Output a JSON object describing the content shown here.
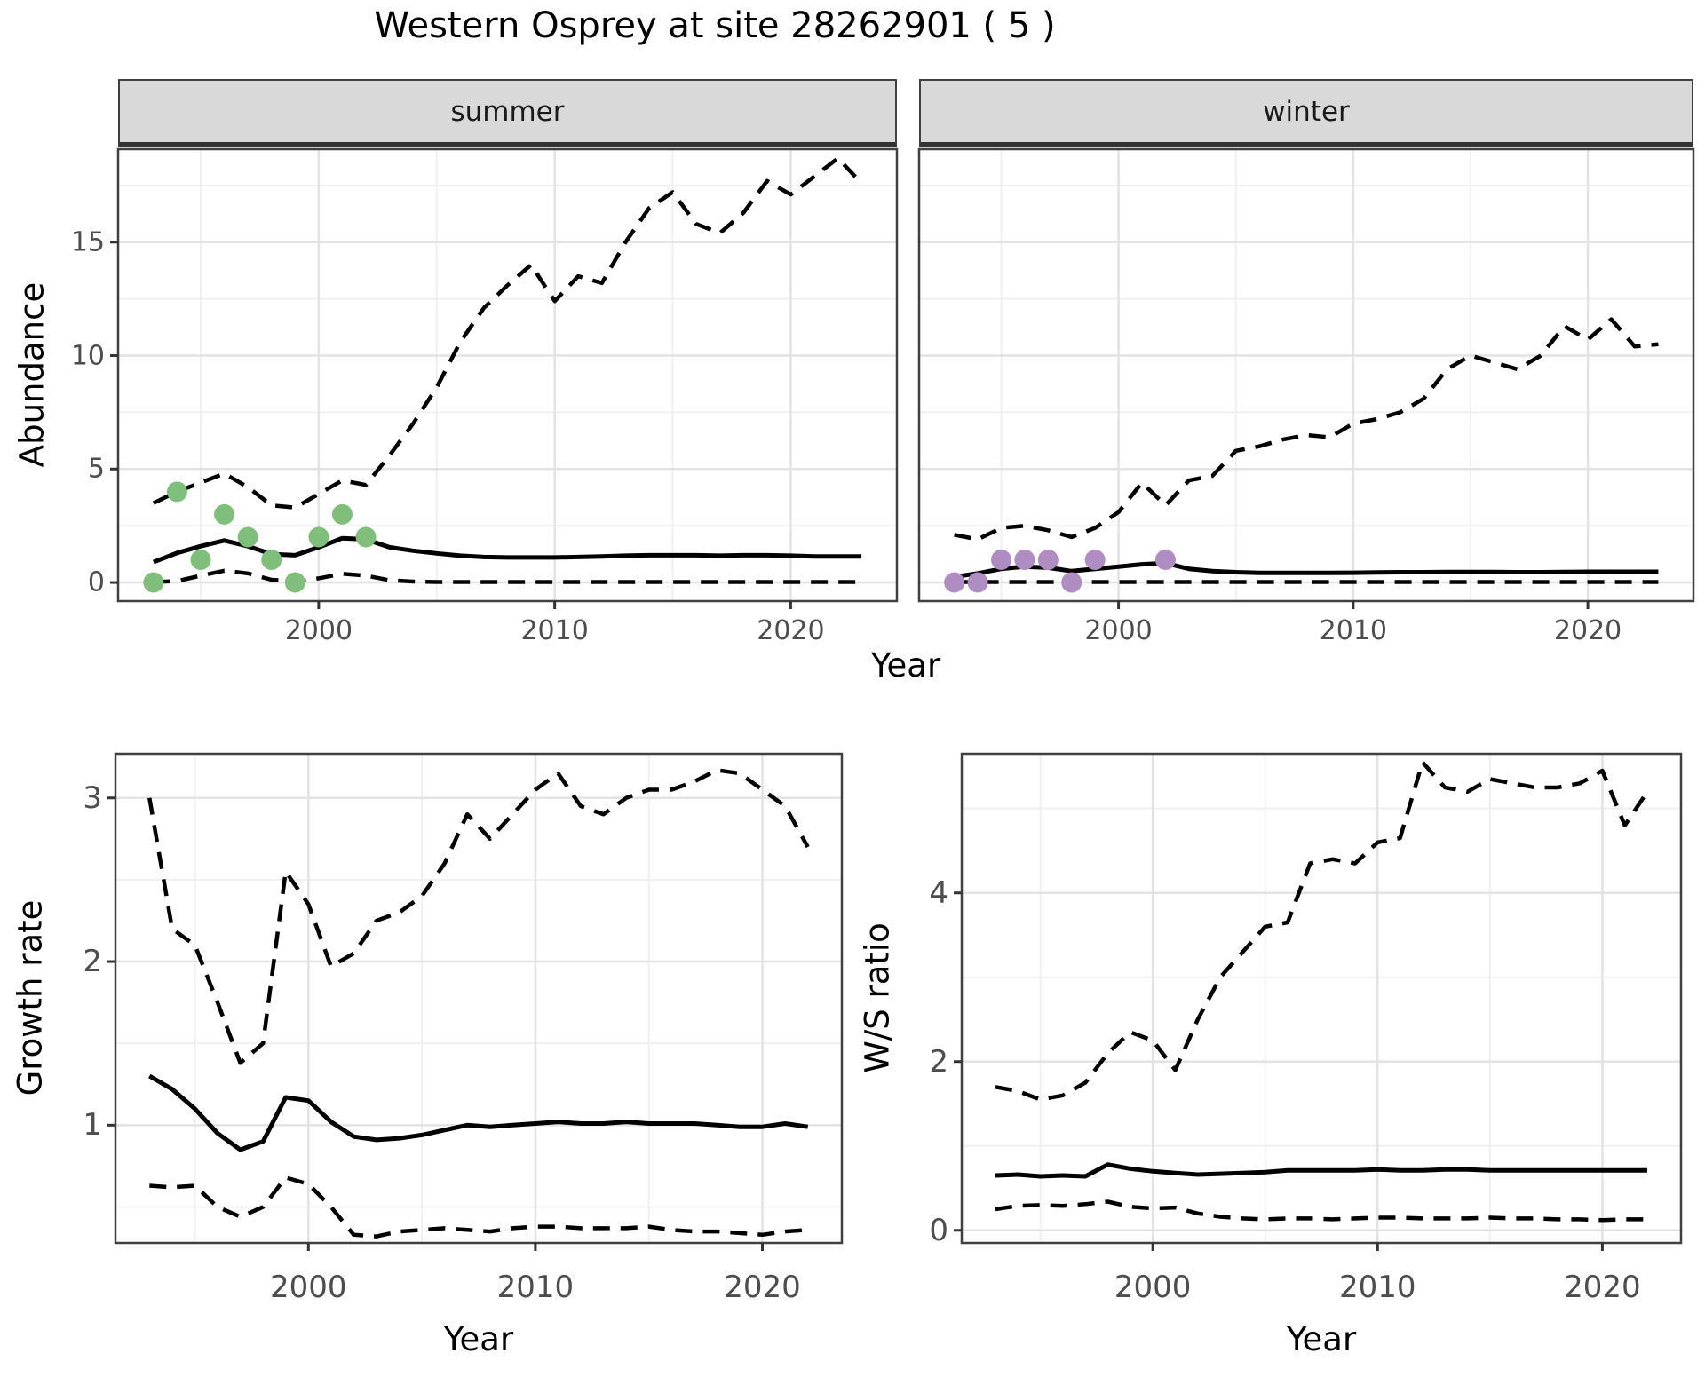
{
  "title": "Western Osprey at site 28262901 ( 5 )",
  "facets": [
    "summer",
    "winter"
  ],
  "axis_titles": {
    "x": "Year",
    "y_abundance": "Abundance",
    "y_growth": "Growth rate",
    "y_ws": "W/S ratio"
  },
  "colors": {
    "summer_points": "#7FBF7B",
    "winter_points": "#AF8DC3",
    "line": "#000000",
    "grid_major": "#E3E3E3",
    "grid_minor": "#F0F0F0",
    "panel_border": "#404040",
    "strip_bg": "#D9D9D9",
    "tick_text": "#4D4D4D",
    "tick_mark": "#333333"
  },
  "chart_data": [
    {
      "id": "abundance_summer",
      "type": "line",
      "facet_label": "summer",
      "xlabel": "Year",
      "ylabel": "Abundance",
      "xlim": [
        1991.5,
        2024.5
      ],
      "ylim": [
        -0.82,
        19.1
      ],
      "xticks": [
        2000,
        2010,
        2020
      ],
      "yticks": [
        0,
        5,
        10,
        15
      ],
      "minor_xticks": [
        1995,
        2005,
        2015
      ],
      "minor_yticks": [
        2.5,
        7.5,
        12.5,
        17.5
      ],
      "show_yticklabels": true,
      "x": [
        1993,
        1994,
        1995,
        1996,
        1997,
        1998,
        1999,
        2000,
        2001,
        2002,
        2003,
        2004,
        2005,
        2006,
        2007,
        2008,
        2009,
        2010,
        2011,
        2012,
        2013,
        2014,
        2015,
        2016,
        2017,
        2018,
        2019,
        2020,
        2021,
        2022,
        2023
      ],
      "series": [
        {
          "name": "upper_ci",
          "style": "dashed",
          "values": [
            3.5,
            4.0,
            4.4,
            4.8,
            4.2,
            3.4,
            3.3,
            3.9,
            4.5,
            4.3,
            5.6,
            7.0,
            8.6,
            10.6,
            12.1,
            13.1,
            14.0,
            12.4,
            13.5,
            13.2,
            15.0,
            16.5,
            17.2,
            15.8,
            15.4,
            16.3,
            17.7,
            17.1,
            17.9,
            18.7,
            17.6
          ]
        },
        {
          "name": "median",
          "style": "solid",
          "values": [
            0.9,
            1.3,
            1.6,
            1.85,
            1.6,
            1.25,
            1.2,
            1.55,
            1.95,
            1.9,
            1.55,
            1.4,
            1.28,
            1.18,
            1.12,
            1.1,
            1.1,
            1.1,
            1.12,
            1.15,
            1.18,
            1.2,
            1.2,
            1.2,
            1.18,
            1.2,
            1.2,
            1.18,
            1.15,
            1.15,
            1.15
          ]
        },
        {
          "name": "lower_ci",
          "style": "dashed",
          "values": [
            0.02,
            0.06,
            0.3,
            0.52,
            0.4,
            0.12,
            0.06,
            0.18,
            0.38,
            0.3,
            0.1,
            0.04,
            0.02,
            0.02,
            0.02,
            0.02,
            0.02,
            0.02,
            0.02,
            0.02,
            0.02,
            0.02,
            0.02,
            0.02,
            0.02,
            0.02,
            0.02,
            0.02,
            0.02,
            0.02,
            0.02
          ]
        }
      ],
      "points": {
        "color_key": "summer_points",
        "data": [
          [
            1993,
            0
          ],
          [
            1994,
            4
          ],
          [
            1995,
            1
          ],
          [
            1996,
            3
          ],
          [
            1997,
            2
          ],
          [
            1998,
            1
          ],
          [
            1999,
            0
          ],
          [
            2000,
            2
          ],
          [
            2001,
            3
          ],
          [
            2002,
            2
          ]
        ]
      }
    },
    {
      "id": "abundance_winter",
      "type": "line",
      "facet_label": "winter",
      "xlabel": "Year",
      "ylabel": "Abundance",
      "xlim": [
        1991.5,
        2024.5
      ],
      "ylim": [
        -0.82,
        19.1
      ],
      "xticks": [
        2000,
        2010,
        2020
      ],
      "yticks": [
        0,
        5,
        10,
        15
      ],
      "minor_xticks": [
        1995,
        2005,
        2015
      ],
      "minor_yticks": [
        2.5,
        7.5,
        12.5,
        17.5
      ],
      "show_yticklabels": false,
      "x": [
        1993,
        1994,
        1995,
        1996,
        1997,
        1998,
        1999,
        2000,
        2001,
        2002,
        2003,
        2004,
        2005,
        2006,
        2007,
        2008,
        2009,
        2010,
        2011,
        2012,
        2013,
        2014,
        2015,
        2016,
        2017,
        2018,
        2019,
        2020,
        2021,
        2022,
        2023
      ],
      "series": [
        {
          "name": "upper_ci",
          "style": "dashed",
          "values": [
            2.1,
            1.9,
            2.4,
            2.5,
            2.3,
            2.0,
            2.4,
            3.1,
            4.4,
            3.4,
            4.5,
            4.7,
            5.8,
            6.0,
            6.3,
            6.5,
            6.4,
            7.0,
            7.2,
            7.5,
            8.1,
            9.4,
            10.0,
            9.7,
            9.4,
            10.0,
            11.3,
            10.7,
            11.6,
            10.4,
            10.5
          ]
        },
        {
          "name": "median",
          "style": "solid",
          "values": [
            0.25,
            0.4,
            0.6,
            0.7,
            0.65,
            0.5,
            0.6,
            0.7,
            0.8,
            0.85,
            0.6,
            0.5,
            0.45,
            0.42,
            0.42,
            0.42,
            0.42,
            0.43,
            0.44,
            0.45,
            0.45,
            0.46,
            0.46,
            0.46,
            0.45,
            0.45,
            0.46,
            0.47,
            0.47,
            0.47,
            0.47
          ]
        },
        {
          "name": "lower_ci",
          "style": "dashed",
          "values": [
            0.02,
            0.02,
            0.02,
            0.02,
            0.02,
            0.02,
            0.02,
            0.02,
            0.02,
            0.02,
            0.02,
            0.02,
            0.02,
            0.02,
            0.02,
            0.02,
            0.02,
            0.02,
            0.02,
            0.02,
            0.02,
            0.02,
            0.02,
            0.02,
            0.02,
            0.02,
            0.02,
            0.02,
            0.02,
            0.02,
            0.02
          ]
        }
      ],
      "points": {
        "color_key": "winter_points",
        "data": [
          [
            1993,
            0
          ],
          [
            1994,
            0
          ],
          [
            1995,
            1
          ],
          [
            1996,
            1
          ],
          [
            1997,
            1
          ],
          [
            1998,
            0
          ],
          [
            1999,
            1
          ],
          [
            2002,
            1
          ]
        ]
      }
    },
    {
      "id": "growth_rate",
      "type": "line",
      "facet_label": "",
      "xlabel": "Year",
      "ylabel": "Growth rate",
      "xlim": [
        1991.5,
        2023.5
      ],
      "ylim": [
        0.28,
        3.27
      ],
      "xticks": [
        2000,
        2010,
        2020
      ],
      "yticks": [
        1,
        2,
        3
      ],
      "minor_xticks": [
        1995,
        2005,
        2015
      ],
      "minor_yticks": [
        0.5,
        1.5,
        2.5
      ],
      "show_yticklabels": true,
      "x": [
        1993,
        1994,
        1995,
        1996,
        1997,
        1998,
        1999,
        2000,
        2001,
        2002,
        2003,
        2004,
        2005,
        2006,
        2007,
        2008,
        2009,
        2010,
        2011,
        2012,
        2013,
        2014,
        2015,
        2016,
        2017,
        2018,
        2019,
        2020,
        2021,
        2022
      ],
      "series": [
        {
          "name": "upper_ci",
          "style": "dashed",
          "values": [
            3.0,
            2.2,
            2.1,
            1.75,
            1.38,
            1.5,
            2.55,
            2.35,
            1.97,
            2.05,
            2.25,
            2.3,
            2.4,
            2.6,
            2.9,
            2.75,
            2.9,
            3.05,
            3.15,
            2.95,
            2.9,
            3.0,
            3.05,
            3.05,
            3.1,
            3.17,
            3.15,
            3.05,
            2.95,
            2.7
          ]
        },
        {
          "name": "median",
          "style": "solid",
          "values": [
            1.3,
            1.22,
            1.1,
            0.95,
            0.85,
            0.9,
            1.17,
            1.15,
            1.02,
            0.93,
            0.91,
            0.92,
            0.94,
            0.97,
            1.0,
            0.99,
            1.0,
            1.01,
            1.02,
            1.01,
            1.01,
            1.02,
            1.01,
            1.01,
            1.01,
            1.0,
            0.99,
            0.99,
            1.01,
            0.99
          ]
        },
        {
          "name": "lower_ci",
          "style": "dashed",
          "values": [
            0.63,
            0.62,
            0.63,
            0.5,
            0.44,
            0.5,
            0.68,
            0.64,
            0.5,
            0.33,
            0.32,
            0.35,
            0.36,
            0.37,
            0.36,
            0.35,
            0.37,
            0.38,
            0.38,
            0.37,
            0.37,
            0.37,
            0.38,
            0.36,
            0.35,
            0.35,
            0.34,
            0.33,
            0.35,
            0.36
          ]
        }
      ],
      "points": {
        "color_key": "",
        "data": []
      }
    },
    {
      "id": "ws_ratio",
      "type": "line",
      "facet_label": "",
      "xlabel": "Year",
      "ylabel": "W/S ratio",
      "xlim": [
        1991.5,
        2023.5
      ],
      "ylim": [
        -0.15,
        5.65
      ],
      "xticks": [
        2000,
        2010,
        2020
      ],
      "yticks": [
        0,
        2,
        4
      ],
      "minor_xticks": [
        1995,
        2005,
        2015
      ],
      "minor_yticks": [
        1,
        3,
        5
      ],
      "show_yticklabels": true,
      "x": [
        1993,
        1994,
        1995,
        1996,
        1997,
        1998,
        1999,
        2000,
        2001,
        2002,
        2003,
        2004,
        2005,
        2006,
        2007,
        2008,
        2009,
        2010,
        2011,
        2012,
        2013,
        2014,
        2015,
        2016,
        2017,
        2018,
        2019,
        2020,
        2021,
        2022
      ],
      "series": [
        {
          "name": "upper_ci",
          "style": "dashed",
          "values": [
            1.7,
            1.65,
            1.55,
            1.6,
            1.75,
            2.1,
            2.35,
            2.25,
            1.9,
            2.5,
            3.0,
            3.3,
            3.6,
            3.65,
            4.35,
            4.4,
            4.35,
            4.6,
            4.65,
            5.55,
            5.25,
            5.2,
            5.35,
            5.3,
            5.25,
            5.25,
            5.3,
            5.45,
            4.8,
            5.2
          ]
        },
        {
          "name": "median",
          "style": "solid",
          "values": [
            0.65,
            0.66,
            0.64,
            0.65,
            0.64,
            0.78,
            0.73,
            0.7,
            0.68,
            0.66,
            0.67,
            0.68,
            0.69,
            0.71,
            0.71,
            0.71,
            0.71,
            0.72,
            0.71,
            0.71,
            0.72,
            0.72,
            0.71,
            0.71,
            0.71,
            0.71,
            0.71,
            0.71,
            0.71,
            0.71
          ]
        },
        {
          "name": "lower_ci",
          "style": "dashed",
          "values": [
            0.25,
            0.29,
            0.3,
            0.29,
            0.31,
            0.34,
            0.28,
            0.26,
            0.27,
            0.2,
            0.16,
            0.14,
            0.13,
            0.14,
            0.14,
            0.13,
            0.14,
            0.15,
            0.15,
            0.14,
            0.14,
            0.14,
            0.15,
            0.14,
            0.14,
            0.13,
            0.13,
            0.12,
            0.13,
            0.13
          ]
        }
      ],
      "points": {
        "color_key": "",
        "data": []
      }
    }
  ]
}
